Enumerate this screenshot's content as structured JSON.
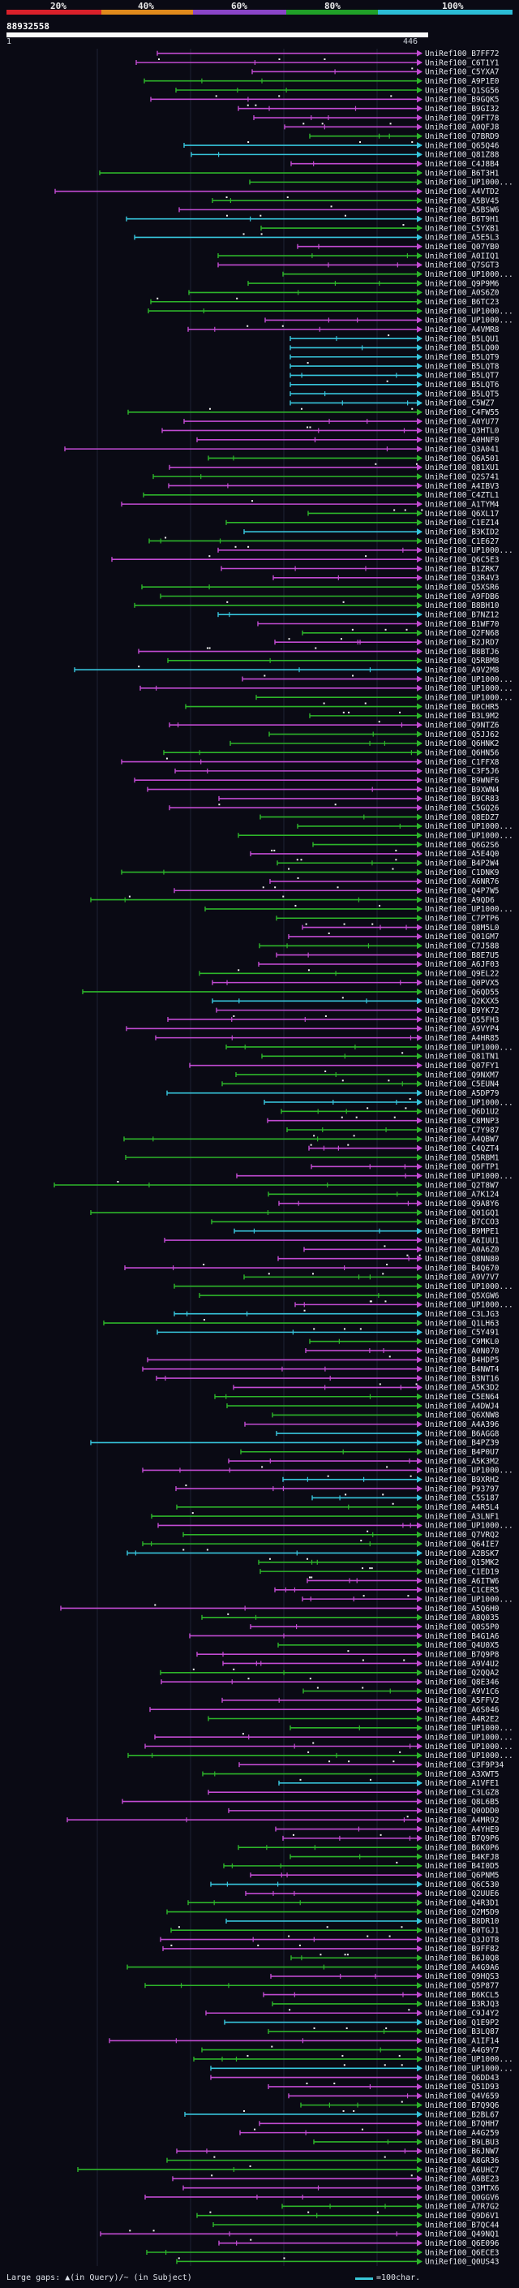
{
  "header": {
    "percent_ticks": [
      "20%",
      "40%",
      "60%",
      "80%",
      "100%"
    ],
    "sequence_id": "88932558",
    "range_start": "1",
    "range_end": "446"
  },
  "colors": {
    "background": "#0a0a14",
    "magenta": "#c24bd2",
    "green": "#2db52a",
    "cyan": "#37c5dc",
    "scale_red": "#d9202a",
    "scale_orange": "#e08a1c",
    "scale_purple": "#8a45c8",
    "scale_green": "#20a028",
    "scale_cyan": "#2bbcd6"
  },
  "hits": [
    "UniRef100_B7FF72",
    "UniRef100_C6T1Y1",
    "UniRef100_C5YXA7",
    "UniRef100_A9P1E0",
    "UniRef100_Q1SG56",
    "UniRef100_B9GQK5",
    "UniRef100_B9GI32",
    "UniRef100_Q9FT78",
    "UniRef100_A0QFJ8",
    "UniRef100_Q7BRD9",
    "UniRef100_Q65Q46",
    "UniRef100_Q81Z88",
    "UniRef100_C4J8B4",
    "UniRef100_B6T3H1",
    "UniRef100_UP1000...",
    "UniRef100_A4VTD2",
    "UniRef100_A5BV45",
    "UniRef100_A5BSW6",
    "UniRef100_B6T9H1",
    "UniRef100_C5YXB1",
    "UniRef100_A5E5L3",
    "UniRef100_Q07YB0",
    "UniRef100_A0IIQ1",
    "UniRef100_Q7SGT3",
    "UniRef100_UP1000...",
    "UniRef100_Q9P9M6",
    "UniRef100_A0S6Z0",
    "UniRef100_B6TC23",
    "UniRef100_UP1000...",
    "UniRef100_UP1000...",
    "UniRef100_A4VMR8",
    "UniRef100_B5LQU1",
    "UniRef100_B5LQ00",
    "UniRef100_B5LQT9",
    "UniRef100_B5LQT8",
    "UniRef100_B5LQT7",
    "UniRef100_B5LQT6",
    "UniRef100_B5LQT5",
    "UniRef100_C5WZ7",
    "UniRef100_C4FW55",
    "UniRef100_A0YU77",
    "UniRef100_Q3HTL0",
    "UniRef100_A0HNF0",
    "UniRef100_Q3A041",
    "UniRef100_Q6A501",
    "UniRef100_Q81XU1",
    "UniRef100_Q2S741",
    "UniRef100_A4IBV3",
    "UniRef100_C4ZTL1",
    "UniRef100_A1TYM4",
    "UniRef100_Q6XL17",
    "UniRef100_C1EZ14",
    "UniRef100_B3KID2",
    "UniRef100_C1E627",
    "UniRef100_UP1000...",
    "UniRef100_Q6C5E3",
    "UniRef100_B1ZRK7",
    "UniRef100_Q3R4V3",
    "UniRef100_Q5XSR6",
    "UniRef100_A9FDB6",
    "UniRef100_B8BH10",
    "UniRef100_B7NZ12",
    "UniRef100_B1WF70",
    "UniRef100_Q2FN68",
    "UniRef100_B2JRD7",
    "UniRef100_B8BTJ6",
    "UniRef100_Q5RBM8",
    "UniRef100_A9V2M8",
    "UniRef100_UP1000...",
    "UniRef100_UP1000...",
    "UniRef100_UP1000...",
    "UniRef100_B6CHR5",
    "UniRef100_B3L9M2",
    "UniRef100_Q9NTZ6",
    "UniRef100_Q5JJ62",
    "UniRef100_Q6HNK2",
    "UniRef100_Q6HN56",
    "UniRef100_C1FFX8",
    "UniRef100_C3F5J6",
    "UniRef100_B9WNF6",
    "UniRef100_B9XWN4",
    "UniRef100_B9CR83",
    "UniRef100_C5GQ26",
    "UniRef100_Q8EDZ7",
    "UniRef100_UP1000...",
    "UniRef100_UP1000...",
    "UniRef100_Q6G2S6",
    "UniRef100_A5E4Q0",
    "UniRef100_B4P2W4",
    "UniRef100_C1DNK9",
    "UniRef100_A6NR76",
    "UniRef100_Q4P7W5",
    "UniRef100_A9QD6",
    "UniRef100_UP1000...",
    "UniRef100_C7PTP6",
    "UniRef100_Q8M5L0",
    "UniRef100_Q01GM7",
    "UniRef100_C7J588",
    "UniRef100_B8E7U5",
    "UniRef100_A6JF03",
    "UniRef100_Q9EL22",
    "UniRef100_Q0PVX5",
    "UniRef100_Q6QD55",
    "UniRef100_Q2KXX5",
    "UniRef100_B9YK72",
    "UniRef100_Q55FH3",
    "UniRef100_A9VYP4",
    "UniRef100_A4HR85",
    "UniRef100_UP1000...",
    "UniRef100_Q81TN1",
    "UniRef100_Q07FY1",
    "UniRef100_Q9NXM7",
    "UniRef100_C5EUN4",
    "UniRef100_A5DP79",
    "UniRef100_UP1000...",
    "UniRef100_Q6D1U2",
    "UniRef100_C8MNP3",
    "UniRef100_C7Y987",
    "UniRef100_A4QBW7",
    "UniRef100_C4QZT4",
    "UniRef100_Q5RBM1",
    "UniRef100_Q6FTP1",
    "UniRef100_UP1000...",
    "UniRef100_Q2T8W7",
    "UniRef100_A7K124",
    "UniRef100_Q9A8Y6",
    "UniRef100_Q01GQ1",
    "UniRef100_B7CCO3",
    "UniRef100_B9MPE1",
    "UniRef100_A6IUU1",
    "UniRef100_A0A6Z0",
    "UniRef100_Q8NN80",
    "UniRef100_B4Q670",
    "UniRef100_A9V7V7",
    "UniRef100_UP1000...",
    "UniRef100_Q5XGW6",
    "UniRef100_UP1000...",
    "UniRef100_C3LJG3",
    "UniRef100_Q1LH63",
    "UniRef100_C5Y491",
    "UniRef100_C9MKL0",
    "UniRef100_A0N070",
    "UniRef100_B4HDP5",
    "UniRef100_B4NWT4",
    "UniRef100_B3NT16",
    "UniRef100_A5K3D2",
    "UniRef100_C5EN64",
    "UniRef100_A4DWJ4",
    "UniRef100_Q6XNW8",
    "UniRef100_A4A396",
    "UniRef100_B6AGG8",
    "UniRef100_B4PZ39",
    "UniRef100_B4P0U7",
    "UniRef100_A5K3M2",
    "UniRef100_UP1000...",
    "UniRef100_B9XRH2",
    "UniRef100_P93797",
    "UniRef100_C5S187",
    "UniRef100_A4R5L4",
    "UniRef100_A3LNF1",
    "UniRef100_UP1000...",
    "UniRef100_Q7VRQ2",
    "UniRef100_Q64IE7",
    "UniRef100_A2BSK7",
    "UniRef100_Q15MK2",
    "UniRef100_C1ED19",
    "UniRef100_A6ITW6",
    "UniRef100_C1CER5",
    "UniRef100_UP1000...",
    "UniRef100_A5Q6H0",
    "UniRef100_A8Q035",
    "UniRef100_Q0S5P0",
    "UniRef100_B4G1A6",
    "UniRef100_Q4U0X5",
    "UniRef100_B7Q9P8",
    "UniRef100_A9V4U2",
    "UniRef100_Q2QQA2",
    "UniRef100_Q8E346",
    "UniRef100_A9V1C6",
    "UniRef100_A5FFV2",
    "UniRef100_A6S046",
    "UniRef100_A4R2E2",
    "UniRef100_UP1000...",
    "UniRef100_UP1000...",
    "UniRef100_UP1000...",
    "UniRef100_UP1000...",
    "UniRef100_C3F9P34",
    "UniRef100_A3XWT5",
    "UniRef100_A1VFE1",
    "UniRef100_C3LGZ8",
    "UniRef100_Q8L6B5",
    "UniRef100_Q0ODD0",
    "UniRef100_A4MR92",
    "UniRef100_A4YHE9",
    "UniRef100_B7Q9P6",
    "UniRef100_B6K0P6",
    "UniRef100_B4KFJ8",
    "UniRef100_B4I0D5",
    "UniRef100_Q6PNM5",
    "UniRef100_Q6C530",
    "UniRef100_Q2UUE6",
    "UniRef100_Q4R3D1",
    "UniRef100_Q2M5D9",
    "UniRef100_B8DR10",
    "UniRef100_B0TGJ1",
    "UniRef100_Q3JOT8",
    "UniRef100_B9FF82",
    "UniRef100_B6J0Q8",
    "UniRef100_A4G9A6",
    "UniRef100_Q9HQS3",
    "UniRef100_Q5P877",
    "UniRef100_B6KCL5",
    "UniRef100_B3RJQ3",
    "UniRef100_C9J4Y2",
    "UniRef100_Q1E9P2",
    "UniRef100_B3LQ87",
    "UniRef100_A1IF14",
    "UniRef100_A4G9Y7",
    "UniRef100_UP1000...",
    "UniRef100_UP1000...",
    "UniRef100_Q6DD43",
    "UniRef100_Q51D93",
    "UniRef100_Q4V659",
    "UniRef100_B7Q9Q6",
    "UniRef100_B2BL67",
    "UniRef100_B7QHH7",
    "UniRef100_A4G259",
    "UniRef100_B9LBU3",
    "UniRef100_B6JNW7",
    "UniRef100_A8GR36",
    "UniRef100_A6UHC7",
    "UniRef100_A6BE23",
    "UniRef100_Q3MTX6",
    "UniRef100_Q0GGV6",
    "UniRef100_A7R7G2",
    "UniRef100_Q9D6V1",
    "UniRef100_B7QC44",
    "UniRef100_Q49NQ1",
    "UniRef100_Q6E096",
    "UniRef100_Q6ECE3",
    "UniRef100_Q0US43"
  ],
  "footer": {
    "legend": "Large gaps: ▲(in Query)/~ (in Subject)",
    "scale": "=100char."
  }
}
